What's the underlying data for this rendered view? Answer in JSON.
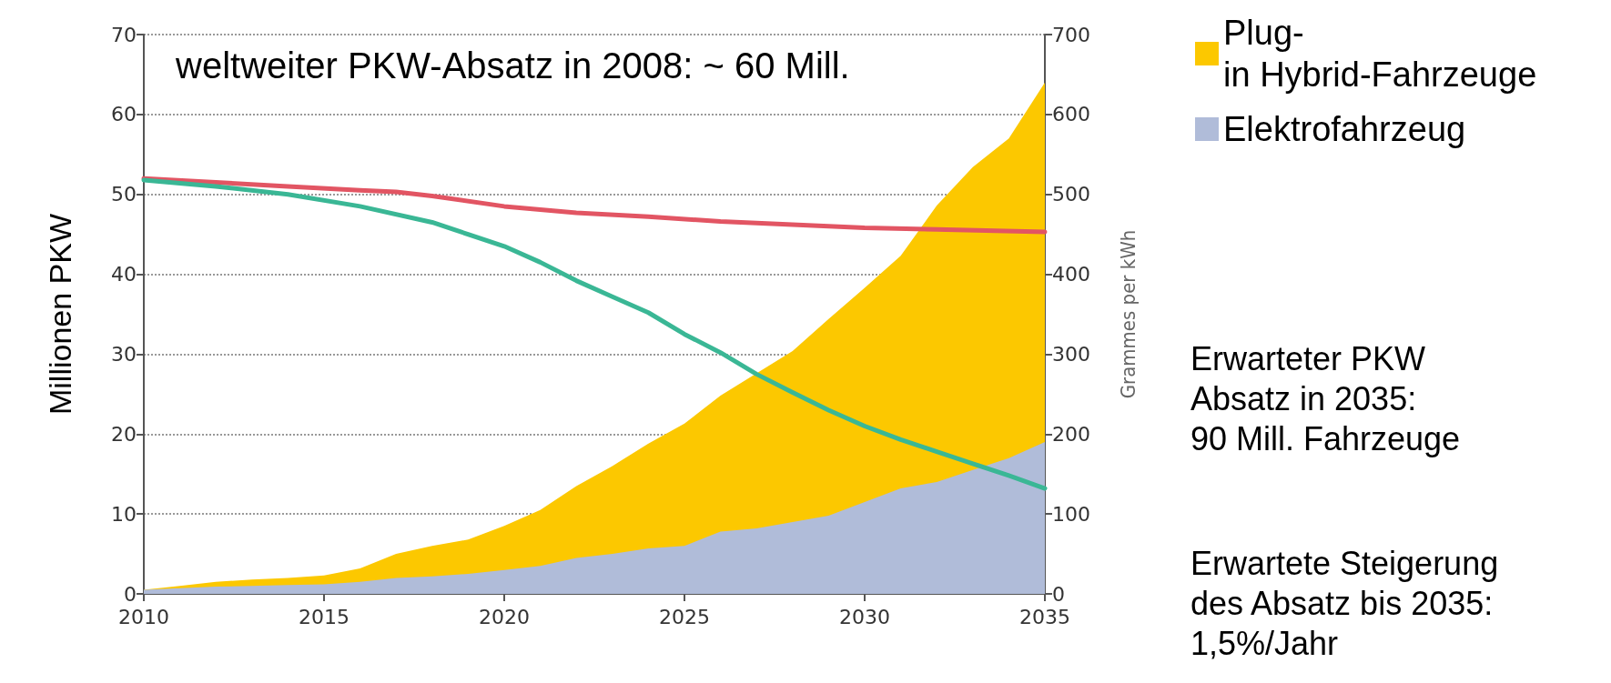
{
  "chart_data": {
    "type": "area",
    "stacked": true,
    "ylabel": "Millionen PKW",
    "y2label": "Grammes per kWh",
    "x": [
      2010,
      2011,
      2012,
      2013,
      2014,
      2015,
      2016,
      2017,
      2018,
      2019,
      2020,
      2021,
      2022,
      2023,
      2024,
      2025,
      2026,
      2027,
      2028,
      2029,
      2030,
      2031,
      2032,
      2033,
      2034,
      2035
    ],
    "series": [
      {
        "name": "Elektrofahrzeug",
        "color": "#b0bcd9",
        "values": [
          0.5,
          0.7,
          0.9,
          1.0,
          1.1,
          1.2,
          1.5,
          2.0,
          2.2,
          2.5,
          3.0,
          3.5,
          4.5,
          5.0,
          5.7,
          6.0,
          7.8,
          8.2,
          9.0,
          9.8,
          11.5,
          13.2,
          14.0,
          15.5,
          17.0,
          19.0
        ]
      },
      {
        "name": "Plug-in Hybrid-Fahrzeuge",
        "color": "#fcc800",
        "values": [
          0,
          0.3,
          0.6,
          0.8,
          0.9,
          1.1,
          1.7,
          3.0,
          3.8,
          4.3,
          5.5,
          7.0,
          9.0,
          11.0,
          13.1,
          15.3,
          17.0,
          19.4,
          21.4,
          24.6,
          26.8,
          29.1,
          34.6,
          37.9,
          40.0,
          45.0
        ]
      },
      {
        "type": "line",
        "axis": "y2",
        "color": "#e25563",
        "x": [
          2010,
          2012,
          2014,
          2016,
          2017,
          2018,
          2020,
          2022,
          2024,
          2026,
          2028,
          2030,
          2032,
          2035
        ],
        "values": [
          520,
          515,
          510,
          505,
          503,
          498,
          485,
          477,
          472,
          466,
          462,
          458,
          456,
          453
        ]
      },
      {
        "type": "line",
        "axis": "y2",
        "color": "#3ab795",
        "x": [
          2010,
          2012,
          2014,
          2016,
          2018,
          2020,
          2021,
          2022,
          2023,
          2024,
          2025,
          2026,
          2027,
          2028,
          2029,
          2030,
          2031,
          2032,
          2033,
          2034,
          2035
        ],
        "values": [
          518,
          510,
          500,
          485,
          465,
          435,
          415,
          392,
          372,
          352,
          325,
          302,
          275,
          252,
          230,
          210,
          193,
          178,
          163,
          148,
          132
        ]
      }
    ],
    "xlim": [
      2010,
      2035
    ],
    "xticks": [
      2010,
      2015,
      2020,
      2025,
      2030,
      2035
    ],
    "ylim": [
      0,
      70
    ],
    "yticks": [
      0,
      10,
      20,
      30,
      40,
      50,
      60,
      70
    ],
    "y2lim": [
      0,
      700
    ],
    "y2ticks": [
      0,
      100,
      200,
      300,
      400,
      500,
      600,
      700
    ],
    "grid": "y",
    "legend": "top right",
    "marker": "none",
    "line_style": "solid",
    "annotations": [
      "weltweiter PKW-Absatz in 2008: ~ 60 Mill.",
      "Erwarteter PKW\nAbsatz in 2035:\n90 Mill. Fahrzeuge",
      "Erwartete Steigerung\ndes Absatz bis 2035:\n1,5%/Jahr"
    ]
  }
}
